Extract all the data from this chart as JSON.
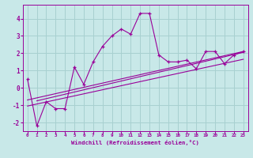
{
  "xlabel": "Windchill (Refroidissement éolien,°C)",
  "bg_color": "#c8e8e8",
  "grid_color": "#a8d0d0",
  "line_color": "#990099",
  "xlim": [
    -0.5,
    23.5
  ],
  "ylim": [
    -2.5,
    4.8
  ],
  "xticks": [
    0,
    1,
    2,
    3,
    4,
    5,
    6,
    7,
    8,
    9,
    10,
    11,
    12,
    13,
    14,
    15,
    16,
    17,
    18,
    19,
    20,
    21,
    22,
    23
  ],
  "yticks": [
    -2,
    -1,
    0,
    1,
    2,
    3,
    4
  ],
  "main_x": [
    0,
    1,
    2,
    3,
    4,
    5,
    6,
    7,
    8,
    9,
    10,
    11,
    12,
    13,
    14,
    15,
    16,
    17,
    18,
    19,
    20,
    21,
    22,
    23
  ],
  "main_y": [
    0.5,
    -2.2,
    -0.8,
    -1.2,
    -1.2,
    1.2,
    0.2,
    1.5,
    2.4,
    3.0,
    3.4,
    3.1,
    4.3,
    4.3,
    1.9,
    1.5,
    1.5,
    1.6,
    1.1,
    2.1,
    2.1,
    1.4,
    1.9,
    2.1
  ],
  "trend1_x": [
    0,
    23
  ],
  "trend1_y": [
    -0.7,
    2.1
  ],
  "trend2_x": [
    0,
    23
  ],
  "trend2_y": [
    -1.05,
    1.65
  ],
  "trend3_x": [
    1,
    23
  ],
  "trend3_y": [
    -0.75,
    2.05
  ]
}
